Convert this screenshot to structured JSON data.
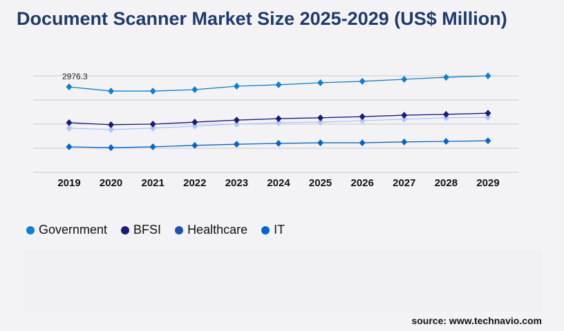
{
  "title": "Document Scanner Market Size 2025-2029 (US$ Million)",
  "source": "source: www.technavio.com",
  "chart_data": {
    "type": "line",
    "title": "Document Scanner Market Size 2025-2029 (US$ Million)",
    "categories": [
      "2019",
      "2020",
      "2021",
      "2022",
      "2023",
      "2024",
      "2025",
      "2026",
      "2027",
      "2028",
      "2029"
    ],
    "ylim": [
      0,
      3360
    ],
    "grid": true,
    "legend_placement": "bottom-left",
    "annotation": "2976.3",
    "series": [
      {
        "name": "Government",
        "color": "#0a7fd4",
        "line_color": "#0a7fd4",
        "values": [
          2976.3,
          2830,
          2830,
          2880,
          3000,
          3050,
          3120,
          3170,
          3240,
          3310,
          3360
        ]
      },
      {
        "name": "BFSI",
        "color": "#1a1a7c",
        "line_color": "#1a1a7c",
        "values": [
          1730,
          1660,
          1680,
          1750,
          1820,
          1870,
          1900,
          1940,
          1990,
          2020,
          2060
        ]
      },
      {
        "name": "Healthcare",
        "color": "#1f4fb0",
        "line_color": "#a9c9f7",
        "values": [
          1540,
          1490,
          1540,
          1610,
          1680,
          1730,
          1750,
          1800,
          1850,
          1900,
          1920
        ]
      },
      {
        "name": "IT",
        "color": "#0066cc",
        "line_color": "#0066cc",
        "values": [
          890,
          860,
          890,
          940,
          980,
          1010,
          1030,
          1030,
          1060,
          1080,
          1100
        ]
      }
    ]
  }
}
